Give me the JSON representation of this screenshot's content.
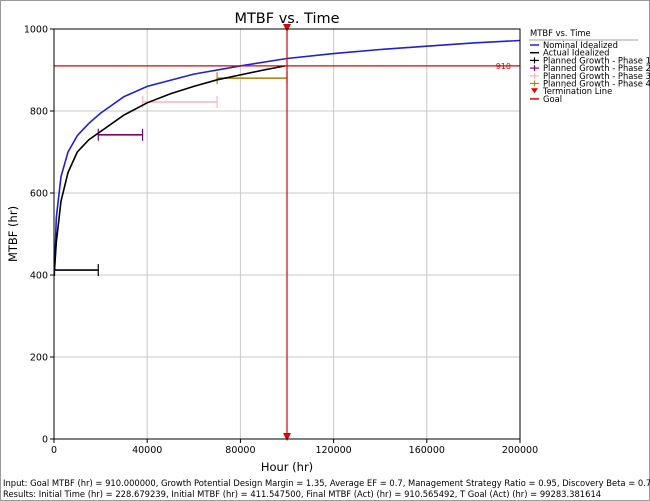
{
  "chart_data": {
    "type": "line",
    "title": "MTBF vs. Time",
    "xlabel": "Hour (hr)",
    "ylabel": "MTBF (hr)",
    "xlim": [
      0,
      200000
    ],
    "ylim": [
      0,
      1000
    ],
    "x_ticks": [
      0,
      40000,
      80000,
      120000,
      160000,
      200000
    ],
    "y_ticks": [
      0,
      200,
      400,
      600,
      800,
      1000
    ],
    "grid": true,
    "legend_title": "MTBF vs. Time",
    "legend_position": "right",
    "legend": [
      {
        "label": "Nominal Idealized",
        "color": "#1f1fd6",
        "marker": "line"
      },
      {
        "label": "Actual Idealized",
        "color": "#000000",
        "marker": "line"
      },
      {
        "label": "Planned Growth - Phase 1",
        "color": "#000000",
        "marker": "plus"
      },
      {
        "label": "Planned Growth - Phase 2",
        "color": "#800080",
        "marker": "plus"
      },
      {
        "label": "Planned Growth - Phase 3",
        "color": "#ffb6c1",
        "marker": "plus"
      },
      {
        "label": "Planned Growth - Phase 4",
        "color": "#b8860b",
        "marker": "plus"
      },
      {
        "label": "Termination Line",
        "color": "#e00000",
        "marker": "triangle"
      },
      {
        "label": "Goal",
        "color": "#e00000",
        "marker": "line"
      }
    ],
    "series": [
      {
        "name": "Nominal Idealized",
        "color": "#1f1fd6",
        "x": [
          229,
          1000,
          3000,
          6000,
          10000,
          15000,
          20000,
          30000,
          40000,
          60000,
          80000,
          100000,
          120000,
          140000,
          160000,
          180000,
          200000
        ],
        "y": [
          410,
          540,
          640,
          700,
          740,
          770,
          795,
          835,
          860,
          890,
          910,
          928,
          940,
          950,
          958,
          966,
          972
        ]
      },
      {
        "name": "Actual Idealized",
        "color": "#000000",
        "x": [
          229,
          1000,
          3000,
          6000,
          10000,
          15000,
          20000,
          30000,
          40000,
          50000,
          60000,
          70000,
          80000,
          90000,
          99283
        ],
        "y": [
          412,
          480,
          580,
          650,
          700,
          730,
          750,
          790,
          820,
          842,
          860,
          876,
          888,
          900,
          910
        ]
      }
    ],
    "planned_phases": [
      {
        "name": "Planned Growth - Phase 1",
        "color": "#000000",
        "x_start": 229,
        "x_end": 19000,
        "mtbf": 412
      },
      {
        "name": "Planned Growth - Phase 2",
        "color": "#800080",
        "x_start": 19000,
        "x_end": 38000,
        "mtbf": 742
      },
      {
        "name": "Planned Growth - Phase 3",
        "color": "#ffb6c1",
        "x_start": 38000,
        "x_end": 70000,
        "mtbf": 822
      },
      {
        "name": "Planned Growth - Phase 4",
        "color": "#b8860b",
        "x_start": 70000,
        "x_end": 100000,
        "mtbf": 880
      }
    ],
    "termination_line": {
      "x": 100000,
      "color": "#e00000"
    },
    "goal": {
      "y": 910,
      "label": "910",
      "color": "#e00000"
    }
  },
  "footer": {
    "input": "Input: Goal MTBF (hr) = 910.000000, Growth Potential Design Margin = 1.35, Average EF = 0.7, Management Strategy Ratio = 0.95, Discovery Beta = 0.7",
    "results": "Results: Initial Time (hr) = 228.679239, Initial MTBF (hr) = 411.547500, Final MTBF (Act) (hr) = 910.565492, T Goal (Act) (hr) = 99283.381614"
  }
}
